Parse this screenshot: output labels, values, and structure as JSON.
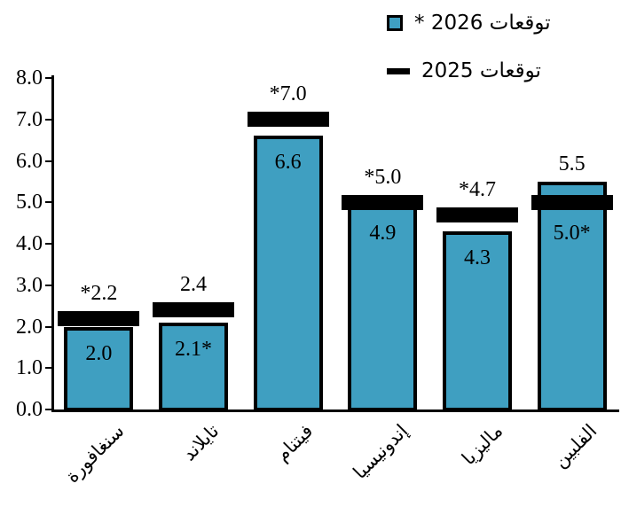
{
  "legend": {
    "item_2026_label": "توقعات 2026 *",
    "item_2025_label": "توقعات 2025"
  },
  "y_axis": {
    "tick_labels": [
      "8.0",
      "7.0",
      "6.0",
      "5.0",
      "4.0",
      "3.0",
      "2.0",
      "1.0",
      "0.0"
    ],
    "min": 0.0,
    "max": 8.0
  },
  "colors": {
    "bar_fill": "#3f9fc1",
    "bar_outline": "#000000",
    "dash_marker": "#000000",
    "text": "#000000",
    "background": "#ffffff"
  },
  "chart_data": {
    "type": "bar",
    "title": "",
    "xlabel": "",
    "ylabel": "",
    "ylim": [
      0,
      8
    ],
    "grid": false,
    "legend_position": "top-right",
    "categories": [
      "سنغافورة",
      "تايلاند",
      "فيتنام",
      "إندونيسيا",
      "ماليزيا",
      "الفلبين"
    ],
    "series": [
      {
        "name": "توقعات 2026 *",
        "style": "blue-bar",
        "values": [
          2.0,
          2.1,
          6.6,
          4.9,
          4.3,
          5.5
        ]
      },
      {
        "name": "توقعات 2025",
        "style": "black-dash",
        "values": [
          2.2,
          2.4,
          7.0,
          5.0,
          4.7,
          5.0
        ]
      }
    ],
    "bars": [
      {
        "category": "سنغافورة",
        "bar_value": 2.0,
        "dash_value": 2.2,
        "top_label": "*2.2",
        "inner_label": "2.0"
      },
      {
        "category": "تايلاند",
        "bar_value": 2.1,
        "dash_value": 2.4,
        "top_label": "2.4",
        "inner_label": "2.1*"
      },
      {
        "category": "فيتنام",
        "bar_value": 6.6,
        "dash_value": 7.0,
        "top_label": "*7.0",
        "inner_label": "6.6"
      },
      {
        "category": "إندونيسيا",
        "bar_value": 4.9,
        "dash_value": 5.0,
        "top_label": "*5.0",
        "inner_label": "4.9"
      },
      {
        "category": "ماليزيا",
        "bar_value": 4.3,
        "dash_value": 4.7,
        "top_label": "*4.7",
        "inner_label": "4.3"
      },
      {
        "category": "الفلبين",
        "bar_value": 5.5,
        "dash_value": 5.0,
        "top_label": "5.5",
        "inner_label": "5.0*"
      }
    ]
  }
}
